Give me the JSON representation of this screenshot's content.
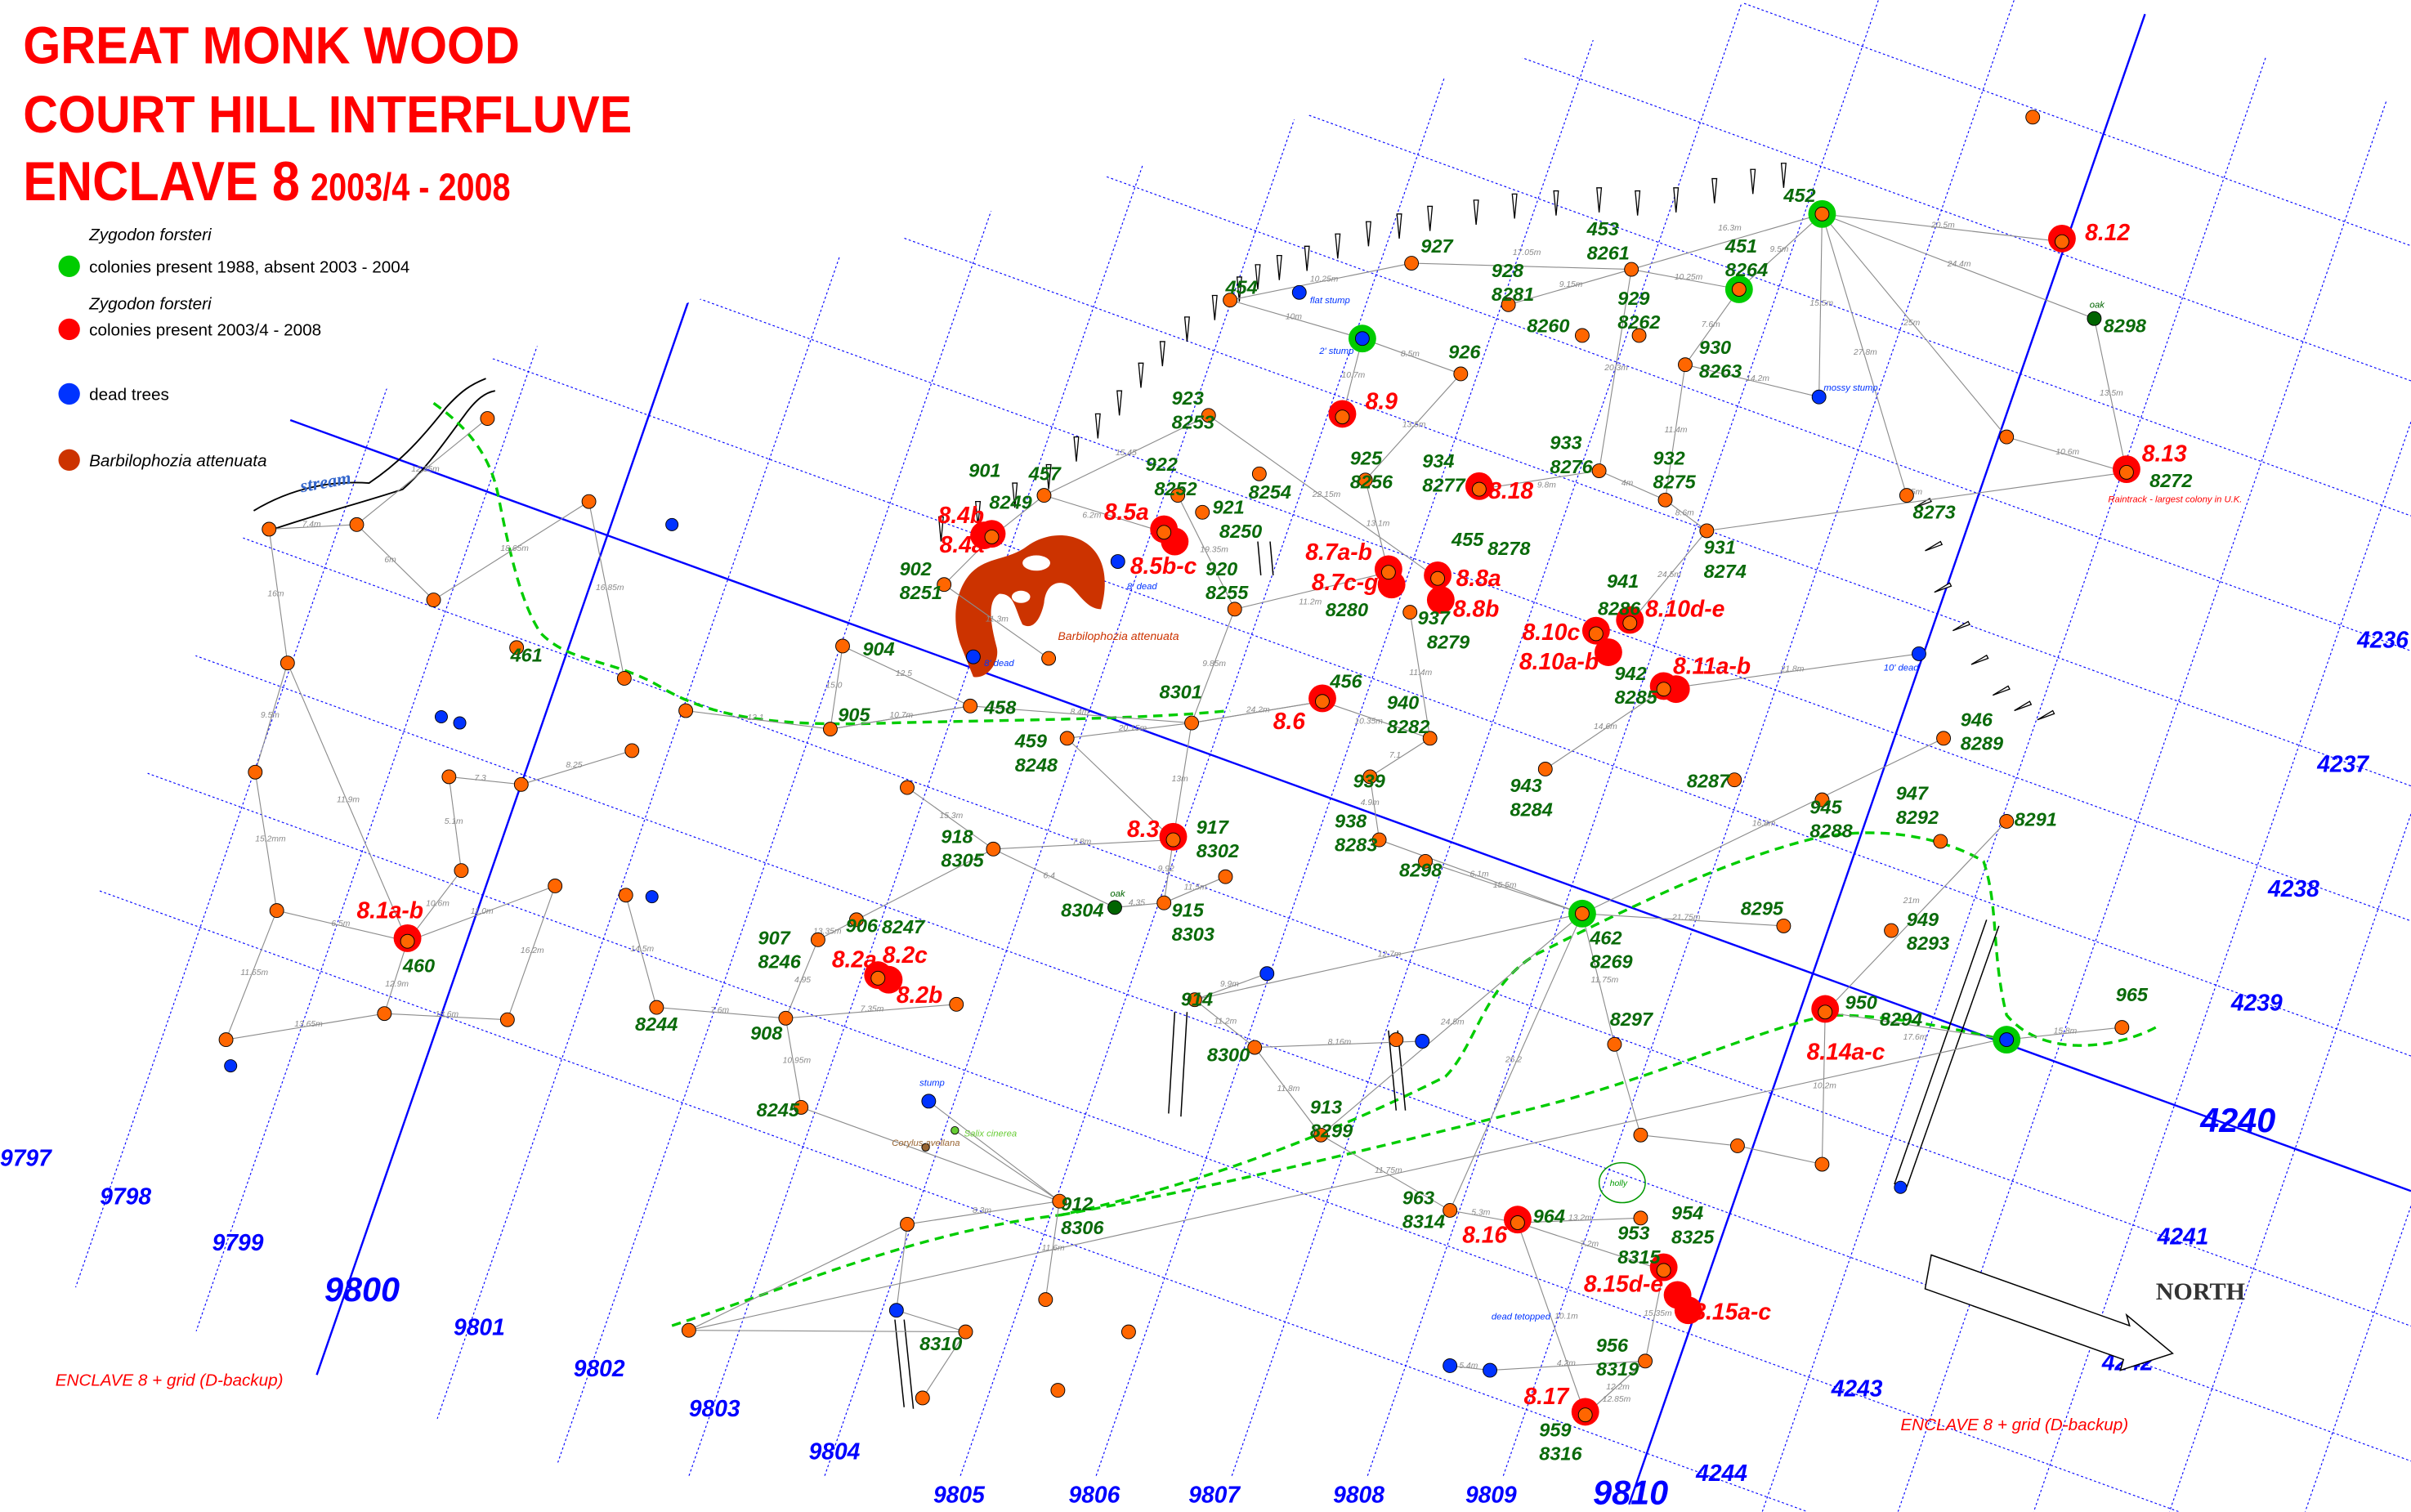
{
  "title": {
    "line1": "GREAT MONK WOOD",
    "line2": "COURT HILL INTERFLUVE",
    "line3": "ENCLAVE 8",
    "years": "2003/4 - 2008"
  },
  "legend": {
    "items": [
      {
        "species": "Zygodon forsteri",
        "label": "colonies present 1988, absent 2003 - 2004",
        "color": "#00cc00"
      },
      {
        "species": "Zygodon forsteri",
        "label": "colonies present 2003/4 - 2008",
        "color": "#ff0000"
      },
      {
        "species": "",
        "label": "dead trees",
        "color": "#0033ff"
      },
      {
        "species": "",
        "label": "Barbilophozia attenuata",
        "color": "#cc3300"
      }
    ]
  },
  "footer_labels": [
    "ENCLAVE 8 + grid (D-backup)",
    "ENCLAVE 8 + grid (D-backup)"
  ],
  "north_label": "NORTH",
  "stream_label": "stream",
  "barbilophozia_label": "Barbilophozia attenuata",
  "holly_label": "holly",
  "grid": {
    "eastings": [
      "9797",
      "9798",
      "9799",
      "9800",
      "9801",
      "9802",
      "9803",
      "9804",
      "9805",
      "9806",
      "9807",
      "9808",
      "9809",
      "9810"
    ],
    "northings": [
      "4236",
      "4237",
      "4238",
      "4239",
      "4240",
      "4241",
      "4242",
      "4243",
      "4244"
    ],
    "bold_eastings": [
      "9800",
      "9810"
    ],
    "bold_northings": [
      "4240"
    ]
  },
  "colors": {
    "present": "#ff0000",
    "absent": "#00cc00",
    "dead": "#0033ff",
    "tree": "#ff6600",
    "oak": "#006400",
    "barbilophozia": "#cc3300",
    "grid": "#0000ff",
    "path": "#00cc00",
    "tag_text": "#0a6a0a"
  },
  "trees": [
    {
      "tags": [
        "452"
      ],
      "colonies": [],
      "status": "absent"
    },
    {
      "tags": [
        "451",
        "8264"
      ],
      "colonies": [],
      "status": "absent"
    },
    {
      "tags": [
        "453",
        "8261"
      ],
      "colonies": [],
      "status": "tree"
    },
    {
      "tags": [
        "927"
      ],
      "colonies": [],
      "status": "tree"
    },
    {
      "tags": [
        "928",
        "8281"
      ],
      "colonies": [],
      "status": "tree"
    },
    {
      "tags": [
        "929",
        "8262"
      ],
      "colonies": [],
      "status": "tree"
    },
    {
      "tags": [
        "8260"
      ],
      "colonies": [],
      "status": "tree"
    },
    {
      "tags": [
        "930",
        "8263"
      ],
      "colonies": [],
      "status": "tree"
    },
    {
      "tags": [
        "454"
      ],
      "colonies": [],
      "status": "tree"
    },
    {
      "tags": [],
      "colonies": [],
      "status": "absent-dead",
      "note": "2' stump"
    },
    {
      "tags": [],
      "colonies": [],
      "status": "dead",
      "note": "flat stump"
    },
    {
      "tags": [
        "926"
      ],
      "colonies": [],
      "status": "tree"
    },
    {
      "tags": [],
      "colonies": [
        "8.9"
      ],
      "status": "present"
    },
    {
      "tags": [
        "923",
        "8253"
      ],
      "colonies": [],
      "status": "tree"
    },
    {
      "tags": [
        "925",
        "8256"
      ],
      "colonies": [],
      "status": "tree"
    },
    {
      "tags": [
        "934",
        "8277"
      ],
      "colonies": [
        "8.18"
      ],
      "status": "present"
    },
    {
      "tags": [
        "933",
        "8276"
      ],
      "colonies": [],
      "status": "tree"
    },
    {
      "tags": [
        "932",
        "8275"
      ],
      "colonies": [],
      "status": "tree"
    },
    {
      "tags": [
        "931",
        "8274"
      ],
      "colonies": [],
      "status": "tree"
    },
    {
      "tags": [
        "8273"
      ],
      "colonies": [],
      "status": "tree"
    },
    {
      "tags": [],
      "colonies": [
        "8.12"
      ],
      "status": "present"
    },
    {
      "tags": [
        "8298"
      ],
      "colonies": [],
      "status": "oak",
      "note": "oak"
    },
    {
      "tags": [
        "8272"
      ],
      "colonies": [
        "8.13"
      ],
      "status": "present",
      "note": "Raintrack - largest colony in U.K."
    },
    {
      "tags": [],
      "colonies": [],
      "status": "dead",
      "note": "10' dead"
    },
    {
      "tags": [],
      "colonies": [],
      "status": "dead",
      "note": "mossy stump"
    },
    {
      "tags": [
        "457"
      ],
      "colonies": [],
      "status": "tree"
    },
    {
      "tags": [
        "901",
        "8249"
      ],
      "colonies": [
        "8.4b",
        "8.4a"
      ],
      "status": "present"
    },
    {
      "tags": [
        "902",
        "8251"
      ],
      "colonies": [],
      "status": "tree"
    },
    {
      "tags": [],
      "colonies": [
        "8.5a",
        "8.5b-c"
      ],
      "status": "present"
    },
    {
      "tags": [],
      "colonies": [],
      "status": "dead",
      "note": "8' dead"
    },
    {
      "tags": [
        "922",
        "8252"
      ],
      "colonies": [],
      "status": "tree"
    },
    {
      "tags": [
        "8254"
      ],
      "colonies": [],
      "status": "tree"
    },
    {
      "tags": [
        "921",
        "8250"
      ],
      "colonies": [],
      "status": "tree"
    },
    {
      "tags": [
        "920",
        "8255"
      ],
      "colonies": [],
      "status": "tree"
    },
    {
      "tags": [
        "8280"
      ],
      "colonies": [
        "8.7a-b",
        "8.7c-g"
      ],
      "status": "present"
    },
    {
      "tags": [
        "455",
        "8278"
      ],
      "colonies": [
        "8.8a",
        "8.8b"
      ],
      "status": "present"
    },
    {
      "tags": [
        "937",
        "8279"
      ],
      "colonies": [],
      "status": "tree"
    },
    {
      "tags": [],
      "colonies": [
        "8.10c",
        "8.10a-b"
      ],
      "status": "present"
    },
    {
      "tags": [
        "941",
        "8286"
      ],
      "colonies": [
        "8.10d-e"
      ],
      "status": "present"
    },
    {
      "tags": [
        "942",
        "8285"
      ],
      "colonies": [
        "8.11a-b"
      ],
      "status": "present"
    },
    {
      "tags": [
        "456"
      ],
      "colonies": [
        "8.6"
      ],
      "status": "present"
    },
    {
      "tags": [],
      "colonies": [],
      "status": "dead",
      "note": "8' dead"
    },
    {
      "tags": [
        "904"
      ],
      "colonies": [],
      "status": "tree"
    },
    {
      "tags": [
        "458"
      ],
      "colonies": [],
      "status": "tree"
    },
    {
      "tags": [
        "905"
      ],
      "colonies": [],
      "status": "tree"
    },
    {
      "tags": [
        "459",
        "8248"
      ],
      "colonies": [],
      "status": "tree"
    },
    {
      "tags": [
        "8301"
      ],
      "colonies": [],
      "status": "tree"
    },
    {
      "tags": [
        "940",
        "8282"
      ],
      "colonies": [],
      "status": "tree"
    },
    {
      "tags": [
        "939"
      ],
      "colonies": [],
      "status": "tree"
    },
    {
      "tags": [
        "943",
        "8284"
      ],
      "colonies": [],
      "status": "tree"
    },
    {
      "tags": [
        "938",
        "8283"
      ],
      "colonies": [],
      "status": "tree"
    },
    {
      "tags": [
        "8298"
      ],
      "colonies": [],
      "status": "tree"
    },
    {
      "tags": [
        "462",
        "8269"
      ],
      "colonies": [],
      "status": "absent"
    },
    {
      "tags": [
        "8287"
      ],
      "colonies": [],
      "status": "tree"
    },
    {
      "tags": [
        "945",
        "8288"
      ],
      "colonies": [],
      "status": "tree"
    },
    {
      "tags": [
        "947",
        "8292"
      ],
      "colonies": [],
      "status": "tree"
    },
    {
      "tags": [
        "8291"
      ],
      "colonies": [],
      "status": "tree"
    },
    {
      "tags": [
        "946",
        "8289"
      ],
      "colonies": [],
      "status": "tree"
    },
    {
      "tags": [
        "8295"
      ],
      "colonies": [],
      "status": "tree"
    },
    {
      "tags": [
        "949",
        "8293"
      ],
      "colonies": [],
      "status": "tree"
    },
    {
      "tags": [
        "950",
        "8294"
      ],
      "colonies": [
        "8.14a-c"
      ],
      "status": "present"
    },
    {
      "tags": [],
      "colonies": [],
      "status": "absent-dead"
    },
    {
      "tags": [
        "965"
      ],
      "colonies": [],
      "status": "tree"
    },
    {
      "tags": [
        "917",
        "8302"
      ],
      "colonies": [
        "8.3"
      ],
      "status": "present"
    },
    {
      "tags": [
        "8304"
      ],
      "colonies": [],
      "status": "oak",
      "note": "oak"
    },
    {
      "tags": [
        "915",
        "8303"
      ],
      "colonies": [],
      "status": "tree"
    },
    {
      "tags": [
        "918",
        "8305"
      ],
      "colonies": [],
      "status": "tree"
    },
    {
      "tags": [],
      "colonies": [
        "8.2a",
        "8.2c",
        "8.2b"
      ],
      "status": "present"
    },
    {
      "tags": [
        "906",
        "8247"
      ],
      "colonies": [],
      "status": "tree"
    },
    {
      "tags": [
        "907",
        "8246"
      ],
      "colonies": [],
      "status": "tree"
    },
    {
      "tags": [
        "908"
      ],
      "colonies": [],
      "status": "tree"
    },
    {
      "tags": [
        "8245"
      ],
      "colonies": [],
      "status": "tree"
    },
    {
      "tags": [
        "8244"
      ],
      "colonies": [],
      "status": "tree"
    },
    {
      "tags": [
        "460"
      ],
      "colonies": [
        "8.1a-b"
      ],
      "status": "present"
    },
    {
      "tags": [
        "8300"
      ],
      "colonies": [],
      "status": "tree"
    },
    {
      "tags": [
        "914"
      ],
      "colonies": [],
      "status": "tree"
    },
    {
      "tags": [],
      "colonies": [],
      "status": "dead"
    },
    {
      "tags": [
        "913",
        "8299"
      ],
      "colonies": [],
      "status": "tree"
    },
    {
      "tags": [],
      "colonies": [],
      "status": "dead"
    },
    {
      "tags": [
        "8297"
      ],
      "colonies": [],
      "status": "tree"
    },
    {
      "tags": [
        "964"
      ],
      "colonies": [
        "8.16"
      ],
      "status": "present"
    },
    {
      "tags": [
        "963",
        "8314"
      ],
      "colonies": [],
      "status": "tree"
    },
    {
      "tags": [
        "953",
        "8315"
      ],
      "colonies": [
        "8.15d-e",
        "8.15a-c"
      ],
      "status": "present"
    },
    {
      "tags": [
        "954",
        "8325"
      ],
      "colonies": [],
      "status": "tree"
    },
    {
      "tags": [
        "956",
        "8319"
      ],
      "colonies": [],
      "status": "tree"
    },
    {
      "tags": [
        "959",
        "8316"
      ],
      "colonies": [
        "8.17"
      ],
      "status": "present"
    },
    {
      "tags": [],
      "colonies": [],
      "status": "dead",
      "note": "dead tetopped"
    },
    {
      "tags": [],
      "colonies": [],
      "status": "dead"
    },
    {
      "tags": [
        "912",
        "8306"
      ],
      "colonies": [],
      "status": "tree"
    },
    {
      "tags": [
        "8310"
      ],
      "colonies": [],
      "status": "tree"
    },
    {
      "tags": [],
      "colonies": [],
      "status": "dead"
    },
    {
      "tags": [],
      "colonies": [],
      "status": "dead",
      "note": "stump"
    },
    {
      "tags": [],
      "colonies": [],
      "status": "salix",
      "note": "Salix cinerea"
    },
    {
      "tags": [],
      "colonies": [],
      "status": "corylus",
      "note": "Corylus avellana"
    },
    {
      "tags": [
        "461"
      ],
      "colonies": [],
      "status": "tree"
    }
  ],
  "distances": [
    "9.5m",
    "16.3m",
    "20.5m",
    "24.4m",
    "15.5m",
    "25m",
    "27.8m",
    "9.15m",
    "17.05m",
    "10.25m",
    "10.25m",
    "10m",
    "8.5m",
    "10.7m",
    "13.5m",
    "15.45",
    "22.15m",
    "9.8m",
    "4m",
    "8.6m",
    "35m",
    "13.5m",
    "10.6m",
    "20.3m",
    "7.6m",
    "11.4m",
    "14.2m",
    "11.3m",
    "6.2m",
    "19.35m",
    "11.2m",
    "13.1m",
    "9.85m",
    "11.4m",
    "24.5m",
    "21.8m",
    "14.6m",
    "24.2m",
    "10.35m",
    "20.15m",
    "10.7m",
    "12.1",
    "8.4m",
    "12.5",
    "15.0",
    "7.1",
    "4.9m",
    "6.1m",
    "15.5m",
    "24.5m",
    "12.7m",
    "26.2",
    "21.75m",
    "11.75m",
    "16.8m",
    "21m",
    "17.6m",
    "15.8m",
    "10.2m",
    "13m",
    "9.92",
    "7.8m",
    "4.35",
    "11.5m",
    "15.3m",
    "13.35m",
    "4.95",
    "7.6m",
    "10.95m",
    "7.35m",
    "14.5m",
    "6.4",
    "12.9m",
    "10.6m",
    "11.0m",
    "6.5m",
    "15.2mm",
    "11.65m",
    "13.65m",
    "18.6m",
    "16.2m",
    "11.9m",
    "9.5m",
    "5.1m",
    "7.3",
    "8.25",
    "16.85m",
    "12.35m",
    "7.4m",
    "6m",
    "16m",
    "18.65m",
    "11.2m",
    "9.9m",
    "8.16m",
    "11.8m",
    "11.75m",
    "5.3m",
    "13.2m",
    "7.2m",
    "15.35m",
    "12.2m",
    "4.2m",
    "10.1m",
    "5.4m",
    "12.85m",
    "8.3m",
    "11.6m"
  ]
}
